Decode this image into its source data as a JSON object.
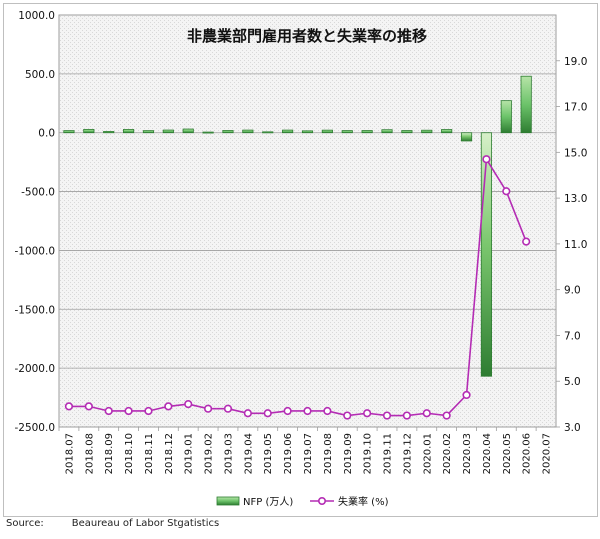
{
  "chart_data": {
    "type": "bar+line",
    "title": "非農業部門雇用者数と失業率の推移",
    "categories": [
      "2018.07",
      "2018.08",
      "2018.09",
      "2018.10",
      "2018.11",
      "2018.12",
      "2019.01",
      "2019.02",
      "2019.03",
      "2019.04",
      "2019.05",
      "2019.06",
      "2019.07",
      "2019.08",
      "2019.09",
      "2019.10",
      "2019.11",
      "2019.12",
      "2020.01",
      "2020.02",
      "2020.03",
      "2020.04",
      "2020.05",
      "2020.06",
      "2020.07"
    ],
    "series": [
      {
        "name": "NFP (万人)",
        "type": "bar",
        "axis": "left",
        "color": "#4caf50",
        "values": [
          17.8,
          28.2,
          10.8,
          27.7,
          17.6,
          22.7,
          31.2,
          5.6,
          18.9,
          22.4,
          7.5,
          22.4,
          15.9,
          21.9,
          18.0,
          18.5,
          25.6,
          18.4,
          21.4,
          27.3,
          -70.1,
          -2068.7,
          272.5,
          480.0,
          null
        ]
      },
      {
        "name": "失業率 (%)",
        "type": "line",
        "axis": "right",
        "color": "#b42cb4",
        "values": [
          3.9,
          3.9,
          3.7,
          3.7,
          3.7,
          3.9,
          4.0,
          3.8,
          3.8,
          3.6,
          3.6,
          3.7,
          3.7,
          3.7,
          3.5,
          3.6,
          3.5,
          3.5,
          3.6,
          3.5,
          4.4,
          14.7,
          13.3,
          11.1,
          null
        ]
      }
    ],
    "y_left": {
      "min": -2500,
      "max": 1000,
      "ticks": [
        "1000.0",
        "500.0",
        "0.0",
        "-500.0",
        "-1000.0",
        "-1500.0",
        "-2000.0",
        "-2500.0"
      ]
    },
    "y_right": {
      "min": 3,
      "max": 21,
      "ticks": [
        "19.0",
        "17.0",
        "15.0",
        "13.0",
        "11.0",
        "9.0",
        "7.0",
        "5.0",
        "3.0"
      ]
    },
    "grid": true,
    "legend_position": "bottom"
  },
  "source": {
    "label": "Source:",
    "text": "Beaureau of Labor Stgatistics"
  }
}
